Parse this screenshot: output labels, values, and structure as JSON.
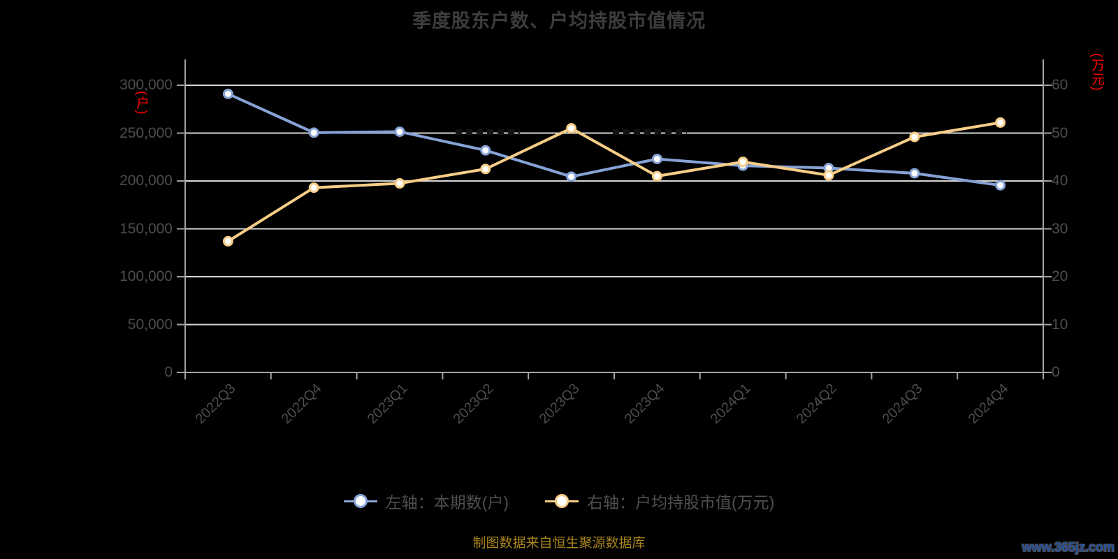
{
  "page": {
    "footer_note": "制图数据来自恒生聚源数据库",
    "watermark": "www.365jz.com"
  },
  "chart_data": {
    "type": "line",
    "title": "季度股东户数、户均持股市值情况",
    "categories": [
      "2022Q3",
      "2022Q4",
      "2023Q1",
      "2023Q2",
      "2023Q3",
      "2023Q4",
      "2024Q1",
      "2024Q2",
      "2024Q3",
      "2024Q4"
    ],
    "series": [
      {
        "name": "左轴：本期数(户)",
        "axis": "left",
        "color": "#86a3d6",
        "marker_fill": "#ffffff",
        "values": [
          291000,
          250500,
          251500,
          232000,
          204500,
          223000,
          216000,
          213500,
          208000,
          195500
        ]
      },
      {
        "name": "右轴：户均持股市值(万元)",
        "axis": "right",
        "color": "#f7cd87",
        "marker_fill": "#ffffff",
        "values": [
          27.4,
          38.6,
          39.5,
          42.5,
          51.0,
          41.0,
          44.0,
          41.2,
          49.2,
          52.2
        ]
      }
    ],
    "left_axis": {
      "name": "(户)",
      "min": 0,
      "max": 300000,
      "tick_step": 50000,
      "ticks": [
        "300,000",
        "250,000",
        "200,000",
        "150,000",
        "100,000",
        "50,000",
        "0"
      ],
      "name_color": "#ff0000",
      "label_color": "#4d4d4d"
    },
    "right_axis": {
      "name": "(万元)",
      "min": 0,
      "max": 60,
      "tick_step": 10,
      "ticks": [
        "60",
        "50",
        "40",
        "30",
        "20",
        "10",
        "0"
      ],
      "name_color": "#ff0000",
      "label_color": "#4d4d4d"
    },
    "grid": true,
    "gridline_color": "#d6d6d6",
    "axis_line_color": "#a3a3a3",
    "background": "#000000",
    "legend_position": "bottom"
  }
}
